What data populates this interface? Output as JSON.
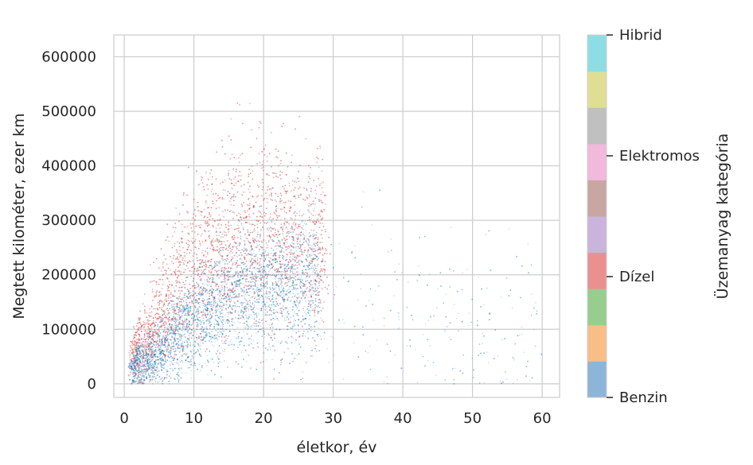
{
  "chart_data": {
    "type": "scatter",
    "xlabel": "életkor, év",
    "ylabel": "Megtett kilométer, ezer km",
    "xlim": [
      -1.5,
      62.5
    ],
    "ylim": [
      -25000,
      640000
    ],
    "x_ticks": [
      0,
      10,
      20,
      30,
      40,
      50,
      60
    ],
    "y_ticks": [
      0,
      100000,
      200000,
      300000,
      400000,
      500000,
      600000
    ],
    "grid": true,
    "colorbar": {
      "label": "Üzemanyag kategória",
      "colormap": "tab10",
      "ticks": [
        "Benzin",
        "Dízel",
        "Elektromos",
        "Hibrid"
      ],
      "colors": [
        "#8db5d8",
        "#f9bd87",
        "#98cd8f",
        "#ea9190",
        "#c9b4db",
        "#c8a7a2",
        "#f1b9db",
        "#c0c0c0",
        "#dedf93",
        "#8edde4"
      ]
    },
    "series": [
      {
        "name": "Benzin",
        "color": "#1f77b4",
        "distribution": [
          {
            "age": 3,
            "km_mean": 40000,
            "km_sd": 25000
          },
          {
            "age": 6,
            "km_mean": 75000,
            "km_sd": 35000
          },
          {
            "age": 10,
            "km_mean": 115000,
            "km_sd": 45000
          },
          {
            "age": 14,
            "km_mean": 150000,
            "km_sd": 50000
          },
          {
            "age": 18,
            "km_mean": 175000,
            "km_sd": 55000
          },
          {
            "age": 22,
            "km_mean": 190000,
            "km_sd": 60000
          },
          {
            "age": 26,
            "km_mean": 185000,
            "km_sd": 65000
          },
          {
            "age": 35,
            "km_mean": 150000,
            "km_sd": 75000
          },
          {
            "age": 50,
            "km_mean": 110000,
            "km_sd": 70000
          },
          {
            "age": 60,
            "km_mean": 90000,
            "km_sd": 60000
          }
        ]
      },
      {
        "name": "Dízel",
        "color": "#d62728",
        "distribution": [
          {
            "age": 3,
            "km_mean": 80000,
            "km_sd": 40000
          },
          {
            "age": 6,
            "km_mean": 150000,
            "km_sd": 55000
          },
          {
            "age": 10,
            "km_mean": 210000,
            "km_sd": 70000
          },
          {
            "age": 14,
            "km_mean": 250000,
            "km_sd": 80000
          },
          {
            "age": 18,
            "km_mean": 270000,
            "km_sd": 85000
          },
          {
            "age": 22,
            "km_mean": 270000,
            "km_sd": 85000
          },
          {
            "age": 26,
            "km_mean": 255000,
            "km_sd": 80000
          }
        ]
      }
    ]
  }
}
